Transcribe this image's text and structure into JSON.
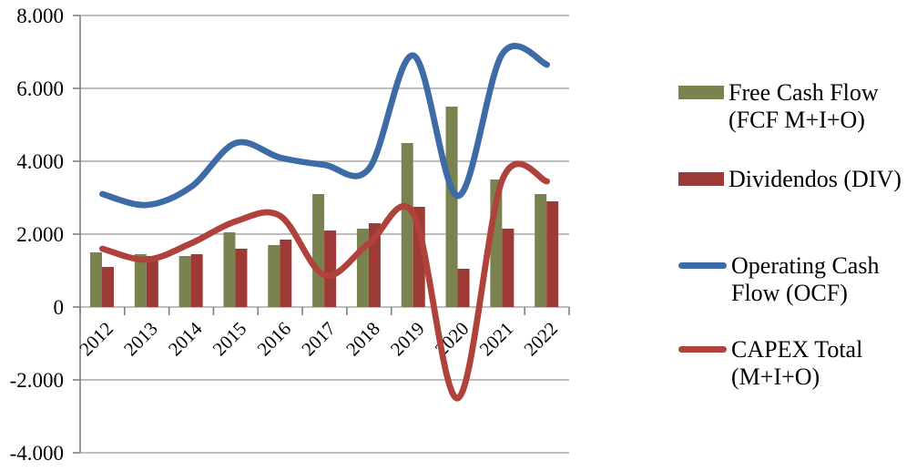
{
  "chart_data": {
    "type": "combo",
    "title": "",
    "categories": [
      "2012",
      "2013",
      "2014",
      "2015",
      "2016",
      "2017",
      "2018",
      "2019",
      "2020",
      "2021",
      "2022"
    ],
    "series": [
      {
        "name": "Free Cash Flow (FCF M+I+O)",
        "type": "bar",
        "color": "#7A8350",
        "values": [
          1500,
          1450,
          1400,
          2050,
          1700,
          3100,
          2150,
          4500,
          5500,
          3500,
          3100
        ]
      },
      {
        "name": "Dividendos (DIV)",
        "type": "bar",
        "color": "#9E3A35",
        "values": [
          1100,
          1400,
          1450,
          1600,
          1850,
          2100,
          2300,
          2750,
          1050,
          2150,
          2900
        ]
      },
      {
        "name": "Operating Cash Flow (OCF)",
        "type": "line",
        "color": "#3D6BA6",
        "values": [
          3100,
          2800,
          3300,
          4500,
          4100,
          3900,
          3800,
          6900,
          3050,
          6950,
          6650
        ]
      },
      {
        "name": "CAPEX Total (M+I+O)",
        "type": "line",
        "color": "#B0423C",
        "values": [
          1600,
          1300,
          1750,
          2350,
          2500,
          875,
          1750,
          2550,
          -2500,
          3500,
          3450
        ]
      }
    ],
    "y_axis": {
      "min": -4000,
      "max": 8000,
      "step": 2000,
      "tick_labels": [
        "8.000",
        "6.000",
        "4.000",
        "2.000",
        "0",
        "-2.000",
        "-4.000"
      ]
    },
    "x_axis": {
      "label_rotation": -45
    },
    "grid": true,
    "legend_position": "right",
    "grid_color": "#969696",
    "axis_color": "#808080",
    "text_color": "#000000"
  },
  "legend": {
    "items": [
      {
        "label_lines": [
          "Free Cash Flow",
          "(FCF M+I+O)"
        ],
        "swatch": "bar",
        "color": "#7A8350"
      },
      {
        "label_lines": [
          "Dividendos (DIV)"
        ],
        "swatch": "bar",
        "color": "#9E3A35"
      },
      {
        "label_lines": [
          "Operating Cash",
          "Flow (OCF)"
        ],
        "swatch": "line",
        "color": "#3D6BA6"
      },
      {
        "label_lines": [
          "CAPEX Total",
          "(M+I+O)"
        ],
        "swatch": "line",
        "color": "#B0423C"
      }
    ]
  }
}
